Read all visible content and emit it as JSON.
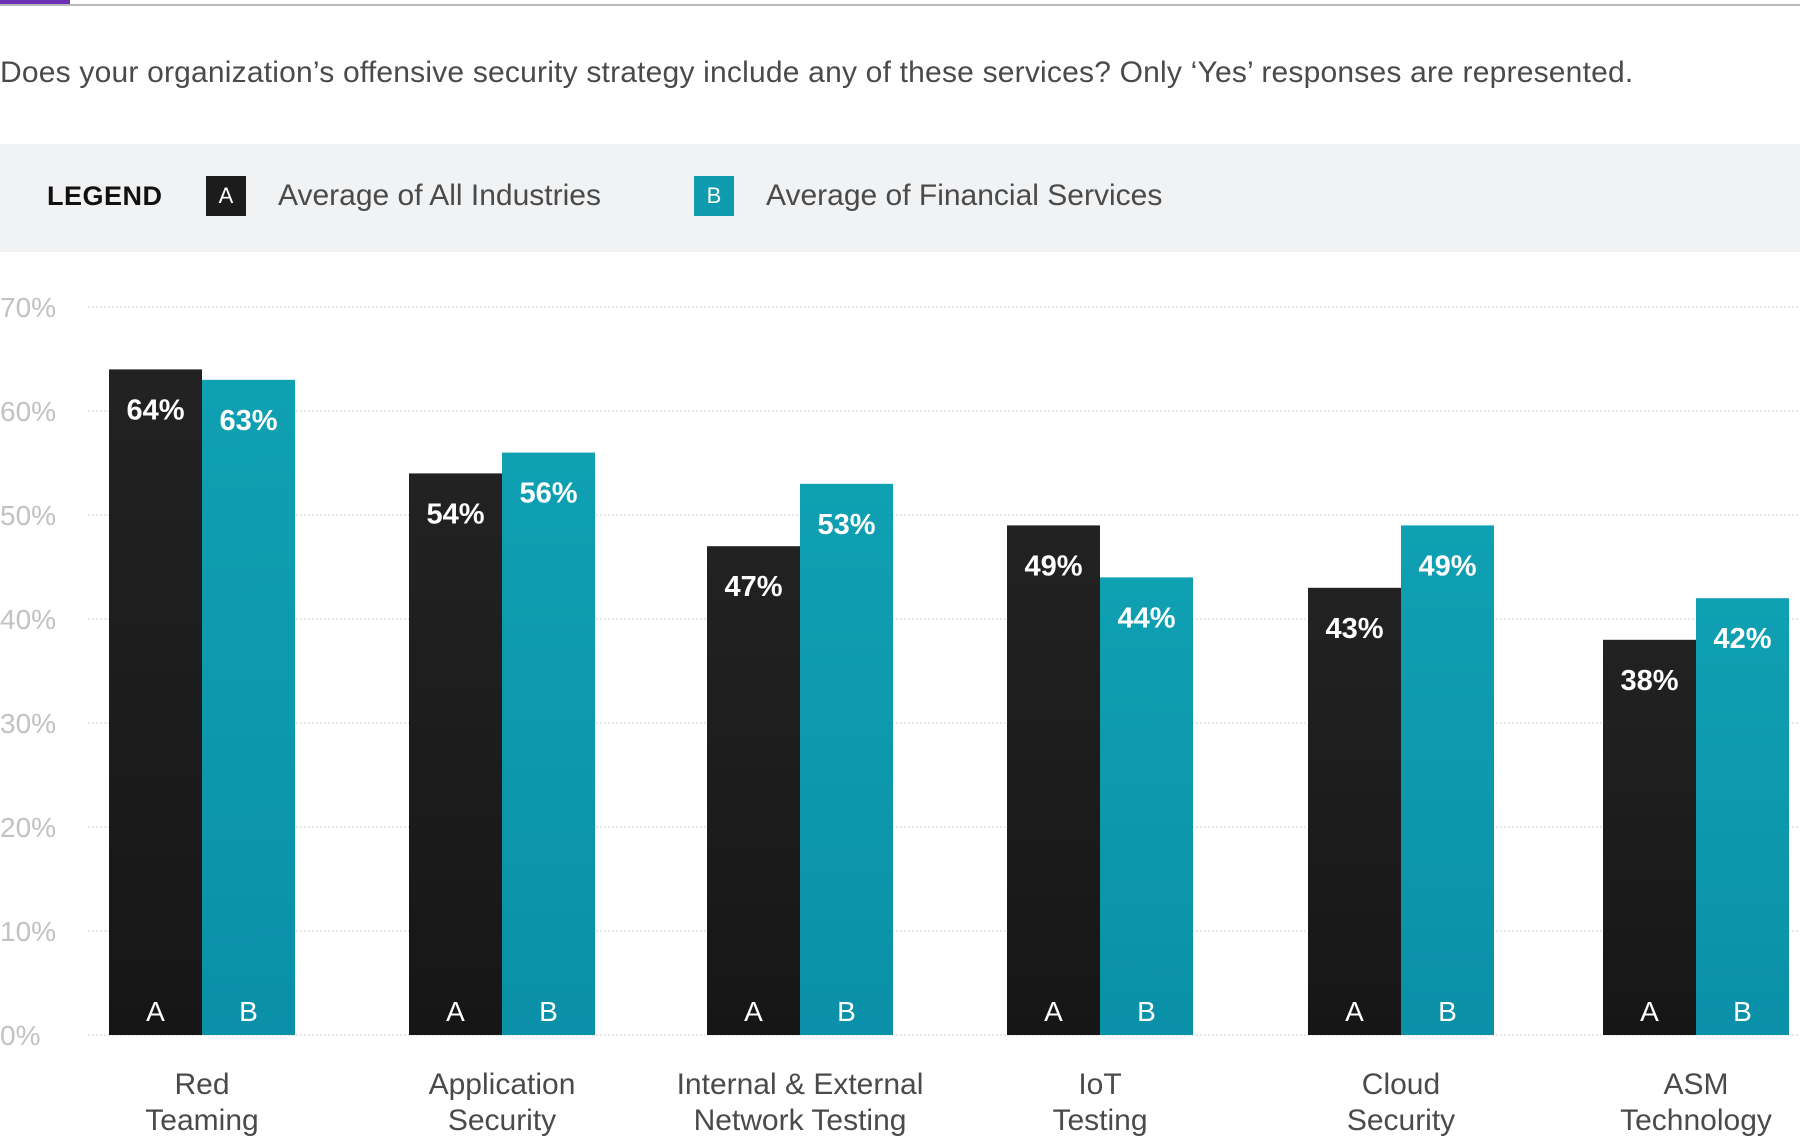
{
  "question": "Does your organization’s offensive security strategy include any of these services? Only ‘Yes’ responses are represented.",
  "legend": {
    "title": "LEGEND",
    "items": [
      {
        "key": "A",
        "label": "Average of All Industries",
        "color": "#1c1c1c"
      },
      {
        "key": "B",
        "label": "Average of Financial Services",
        "color": "#0f9bae"
      }
    ]
  },
  "chart_data": {
    "type": "bar",
    "title": "",
    "xlabel": "",
    "ylabel": "",
    "ylim": [
      0,
      70
    ],
    "yticks": [
      0,
      10,
      20,
      30,
      40,
      50,
      60,
      70
    ],
    "ytick_labels": [
      "0%",
      "10%",
      "20%",
      "30%",
      "40%",
      "50%",
      "60%",
      "70%"
    ],
    "grid": true,
    "legend_position": "top",
    "categories": [
      [
        "Red",
        "Teaming"
      ],
      [
        "Application",
        "Security"
      ],
      [
        "Internal & External",
        "Network Testing"
      ],
      [
        "IoT",
        "Testing"
      ],
      [
        "Cloud",
        "Security"
      ],
      [
        "ASM",
        "Technology"
      ]
    ],
    "series": [
      {
        "name": "Average of All Industries",
        "key": "A",
        "color": "#1c1c1c",
        "values": [
          64,
          54,
          47,
          49,
          43,
          38
        ],
        "labels": [
          "64%",
          "54%",
          "47%",
          "49%",
          "43%",
          "38%"
        ]
      },
      {
        "name": "Average of Financial Services",
        "key": "B",
        "color": "#0f9bae",
        "values": [
          63,
          56,
          53,
          44,
          49,
          42
        ],
        "labels": [
          "63%",
          "56%",
          "53%",
          "44%",
          "49%",
          "42%"
        ]
      }
    ]
  }
}
